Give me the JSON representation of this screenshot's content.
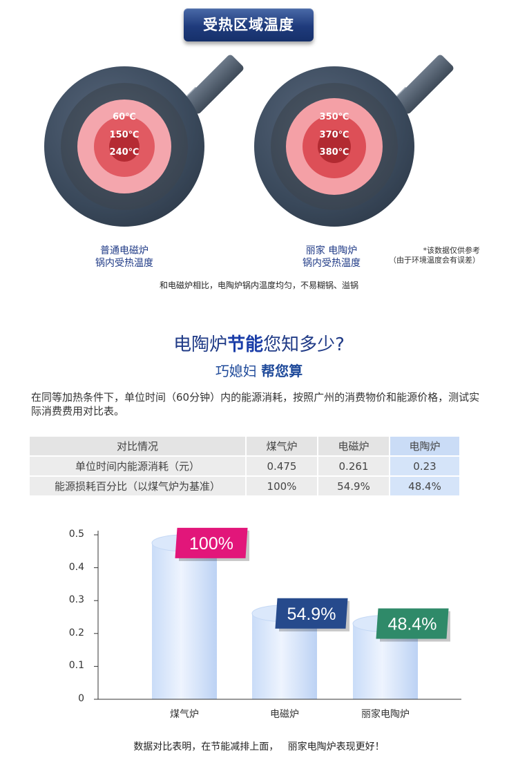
{
  "banner": {
    "title": "受热区域温度"
  },
  "left_pan": {
    "temps": [
      "60℃",
      "150℃",
      "240℃"
    ],
    "caption_line1": "普通电磁炉",
    "caption_line2": "锅内受热温度"
  },
  "right_pan": {
    "temps": [
      "350℃",
      "370℃",
      "380℃"
    ],
    "caption_brand": "丽家",
    "caption_name": "电陶炉",
    "caption_line2": "锅内受热温度"
  },
  "note": {
    "line1": "*该数据仅供参考",
    "line2": "（由于环境温度会有误差）"
  },
  "comparison_text": "和电磁炉相比，电陶炉锅内温度均匀，不易糊锅、溢锅",
  "section2": {
    "title_pre": "电陶炉",
    "title_bold": "节能",
    "title_post": "您知多少?",
    "subtitle_pre": "巧媳妇",
    "subtitle_bold": "帮您算",
    "paragraph": "在同等加热条件下，单位时间（60分钟）内的能源消耗，按照广州的消费物价和能源价格，测试实际消费费用对比表。"
  },
  "table": {
    "headers": [
      "对比情况",
      "煤气炉",
      "电磁炉",
      "电陶炉"
    ],
    "rows": [
      [
        "单位时间内能源消耗（元）",
        "0.475",
        "0.261",
        "0.23"
      ],
      [
        "能源损耗百分比（以煤气炉为基准）",
        "100%",
        "54.9%",
        "48.4%"
      ]
    ]
  },
  "chart_data": {
    "type": "bar",
    "categories": [
      "煤气炉",
      "电磁炉",
      "丽家电陶炉"
    ],
    "values": [
      0.475,
      0.261,
      0.23
    ],
    "data_labels": [
      "100%",
      "54.9%",
      "48.4%"
    ],
    "y_ticks": [
      "0",
      "0.1",
      "0.2",
      "0.3",
      "0.4",
      "0.5"
    ],
    "ylim": [
      0,
      0.5
    ],
    "label_colors": [
      "#e2167a",
      "#264a8c",
      "#2f8a69"
    ],
    "bar_color": "#dbe8fb"
  },
  "footer": {
    "text": "数据对比表明，在节能减排上面，   丽家电陶炉表现更好！"
  }
}
